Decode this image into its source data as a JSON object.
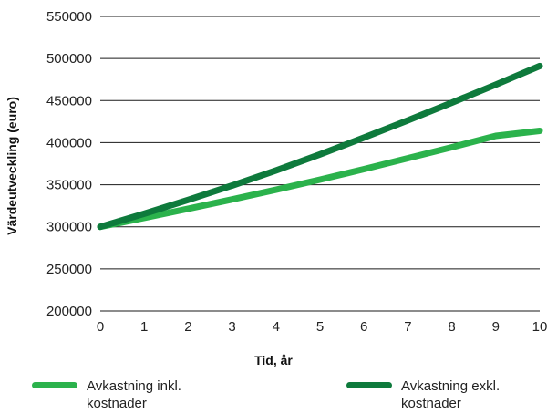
{
  "chart_data": {
    "type": "line",
    "xlabel": "Tid, år",
    "ylabel": "Värdeutveckling (euro)",
    "xlim": [
      0,
      10
    ],
    "ylim": [
      200000,
      550000
    ],
    "x_ticks": [
      0,
      1,
      2,
      3,
      4,
      5,
      6,
      7,
      8,
      9,
      10
    ],
    "y_ticks": [
      200000,
      250000,
      300000,
      350000,
      400000,
      450000,
      500000,
      550000
    ],
    "grid": "horizontal",
    "legend_position": "bottom",
    "x": [
      0,
      1,
      2,
      3,
      4,
      5,
      6,
      7,
      8,
      9,
      10
    ],
    "series": [
      {
        "name": "Avkastning inkl. kostnader",
        "color": "#2bb24c",
        "values": [
          300000,
          310500,
          321500,
          332500,
          344000,
          356000,
          368500,
          381500,
          394500,
          408000,
          414000
        ]
      },
      {
        "name": "Avkastning exkl. kostnader",
        "color": "#0e7a3c",
        "values": [
          300000,
          315500,
          332000,
          349000,
          367000,
          386000,
          406000,
          426500,
          447500,
          469000,
          491000
        ]
      }
    ]
  }
}
